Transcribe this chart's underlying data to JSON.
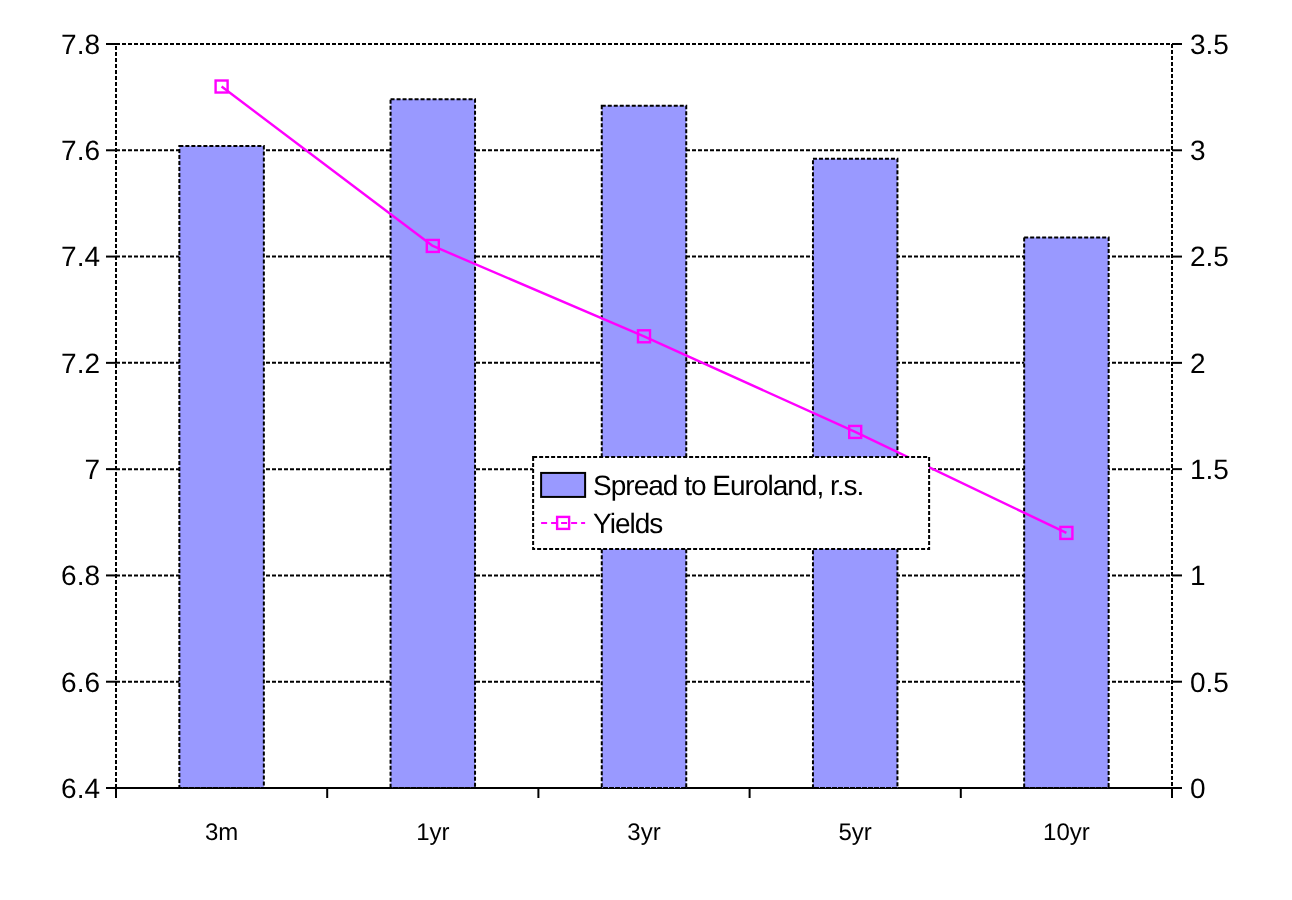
{
  "chart_data": {
    "type": "bar",
    "categories": [
      "3m",
      "1yr",
      "3yr",
      "5yr",
      "10yr"
    ],
    "series": [
      {
        "name": "Spread to Euroland, r.s.",
        "axis": "y2",
        "color": "#9999ff",
        "values": [
          3.02,
          3.24,
          3.21,
          2.96,
          2.59
        ]
      },
      {
        "name": "Yields",
        "type": "line",
        "color": "#ff00ff",
        "values": [
          7.72,
          7.42,
          7.25,
          7.07,
          6.88
        ]
      }
    ],
    "ylim": [
      6.4,
      7.8
    ],
    "yticks": [
      6.4,
      6.6,
      6.8,
      7,
      7.2,
      7.4,
      7.6,
      7.8
    ],
    "y2lim": [
      0,
      3.5
    ],
    "y2ticks": [
      0,
      0.5,
      1,
      1.5,
      2,
      2.5,
      3,
      3.5
    ],
    "grid": "y",
    "legend": "bottom",
    "marker": "square",
    "line_style": "solid"
  }
}
